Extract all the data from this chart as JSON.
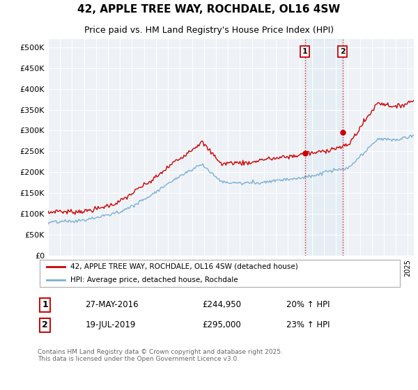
{
  "title1": "42, APPLE TREE WAY, ROCHDALE, OL16 4SW",
  "title2": "Price paid vs. HM Land Registry's House Price Index (HPI)",
  "ylim": [
    0,
    520000
  ],
  "yticks": [
    0,
    50000,
    100000,
    150000,
    200000,
    250000,
    300000,
    350000,
    400000,
    450000,
    500000
  ],
  "ytick_labels": [
    "£0",
    "£50K",
    "£100K",
    "£150K",
    "£200K",
    "£250K",
    "£300K",
    "£350K",
    "£400K",
    "£450K",
    "£500K"
  ],
  "xlim_start": 1995.0,
  "xlim_end": 2025.5,
  "marker1_x": 2016.41,
  "marker1_y": 244950,
  "marker2_x": 2019.55,
  "marker2_y": 295000,
  "marker1_label": "1",
  "marker2_label": "2",
  "marker1_date": "27-MAY-2016",
  "marker1_price": "£244,950",
  "marker1_hpi": "20% ↑ HPI",
  "marker2_date": "19-JUL-2019",
  "marker2_price": "£295,000",
  "marker2_hpi": "23% ↑ HPI",
  "red_color": "#cc0000",
  "blue_color": "#7bafd4",
  "dashed_vline_color": "#cc0000",
  "bg_color": "#eef2f7",
  "legend1": "42, APPLE TREE WAY, ROCHDALE, OL16 4SW (detached house)",
  "legend2": "HPI: Average price, detached house, Rochdale",
  "footer": "Contains HM Land Registry data © Crown copyright and database right 2025.\nThis data is licensed under the Open Government Licence v3.0.",
  "title1_fontsize": 11,
  "title2_fontsize": 9
}
